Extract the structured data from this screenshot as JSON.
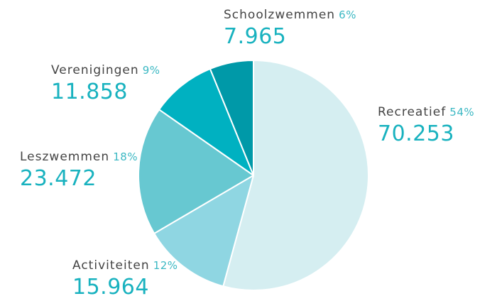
{
  "chart_data": {
    "type": "pie",
    "categories": [
      "Recreatief",
      "Activiteiten",
      "Leszwemmen",
      "Verenigingen",
      "Schoolzwemmen"
    ],
    "values": [
      70253,
      15964,
      23472,
      11858,
      7965
    ],
    "value_labels": [
      "70.253",
      "15.964",
      "23.472",
      "11.858",
      "7.965"
    ],
    "percent_labels": [
      "54%",
      "12%",
      "18%",
      "9%",
      "6%"
    ],
    "colors": [
      "#d5eef1",
      "#8fd6e2",
      "#67c8d1",
      "#00b1c1",
      "#0099a8"
    ]
  }
}
